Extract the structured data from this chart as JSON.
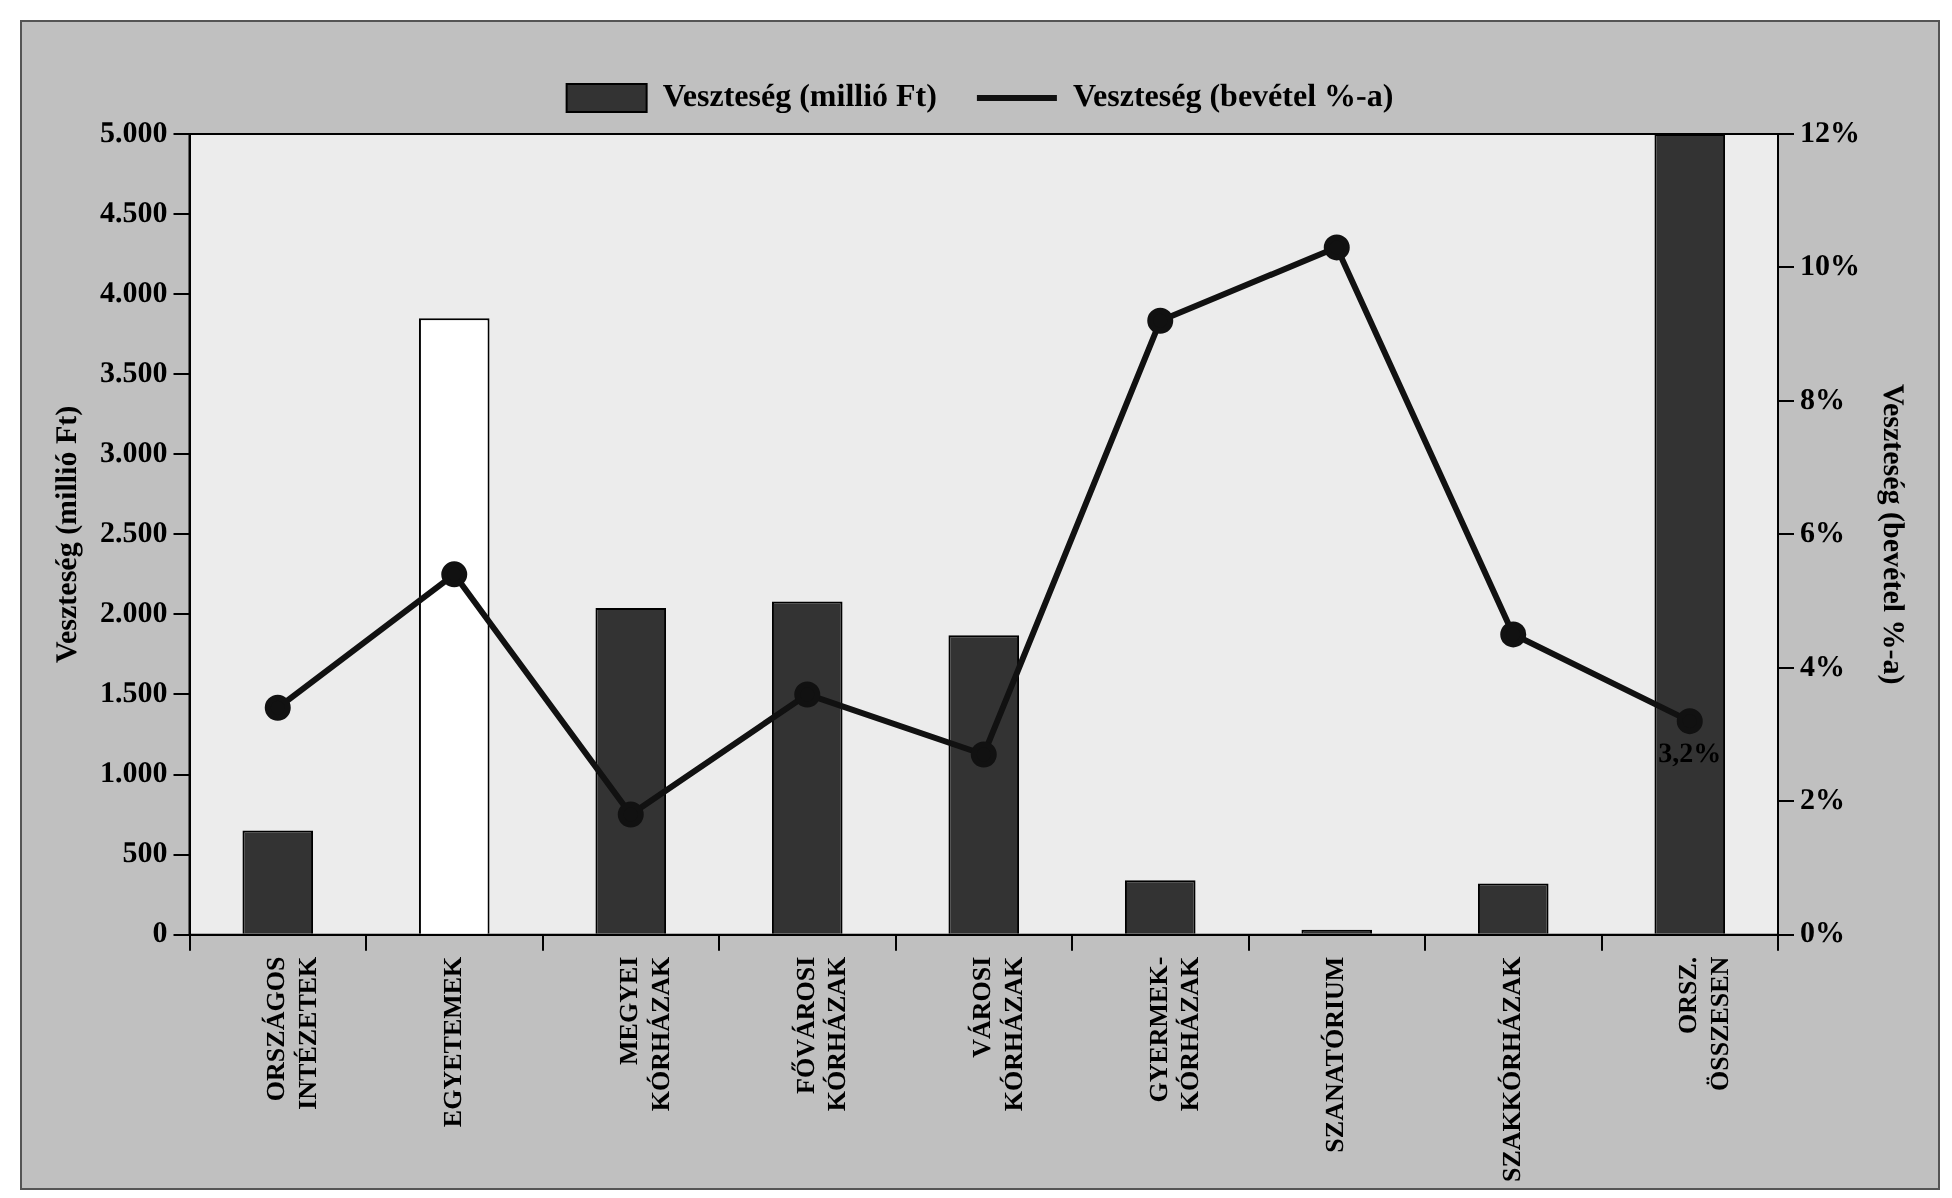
{
  "chart_data": {
    "type": "bar",
    "categories": [
      "ORSZÁGOS INTÉZETEK",
      "EGYETEMEK",
      "MEGYEI KÓRHÁZAK",
      "FŐVÁROSI KÓRHÁZAK",
      "VÁROSI KÓRHÁZAK",
      "GYERMEK-KÓRHÁZAK",
      "SZANATÓRIUM",
      "SZAKKÓRHÁZAK",
      "ORSZ. ÖSSZESEN"
    ],
    "series": [
      {
        "name": "Veszteség (millió Ft)",
        "color": "#333333",
        "colors": [
          "#333333",
          "#ffffff",
          "#333333",
          "#333333",
          "#333333",
          "#333333",
          "#333333",
          "#333333",
          "#333333"
        ],
        "values": [
          650,
          3850,
          2040,
          2080,
          1870,
          340,
          30,
          320,
          5000
        ]
      },
      {
        "name": "Veszteség (bevétel %-a)",
        "type": "line",
        "axis": "y2",
        "color": "#111111",
        "marker": "circle",
        "values": [
          3.4,
          5.4,
          1.8,
          3.6,
          2.7,
          9.2,
          10.3,
          4.5,
          3.2
        ],
        "value_labels": [
          null,
          null,
          null,
          null,
          null,
          null,
          null,
          null,
          "3,2%"
        ]
      }
    ],
    "ylabel": "Veszteség (millió Ft)",
    "y2label": "Veszteség (bevétel %-a)",
    "ylim": [
      0,
      5000
    ],
    "yticks": [
      {
        "value": 0,
        "label": "0"
      },
      {
        "value": 500,
        "label": "500"
      },
      {
        "value": 1000,
        "label": "1.000"
      },
      {
        "value": 1500,
        "label": "1.500"
      },
      {
        "value": 2000,
        "label": "2.000"
      },
      {
        "value": 2500,
        "label": "2.500"
      },
      {
        "value": 3000,
        "label": "3.000"
      },
      {
        "value": 3500,
        "label": "3.500"
      },
      {
        "value": 4000,
        "label": "4.000"
      },
      {
        "value": 4500,
        "label": "4.500"
      },
      {
        "value": 5000,
        "label": "5.000"
      }
    ],
    "y2lim": [
      0,
      12
    ],
    "y2ticks": [
      {
        "value": 0,
        "label": "0%"
      },
      {
        "value": 2,
        "label": "2%"
      },
      {
        "value": 4,
        "label": "4%"
      },
      {
        "value": 6,
        "label": "6%"
      },
      {
        "value": 8,
        "label": "8%"
      },
      {
        "value": 10,
        "label": "10%"
      },
      {
        "value": 12,
        "label": "12%"
      }
    ],
    "grid": false,
    "legend": "top"
  }
}
